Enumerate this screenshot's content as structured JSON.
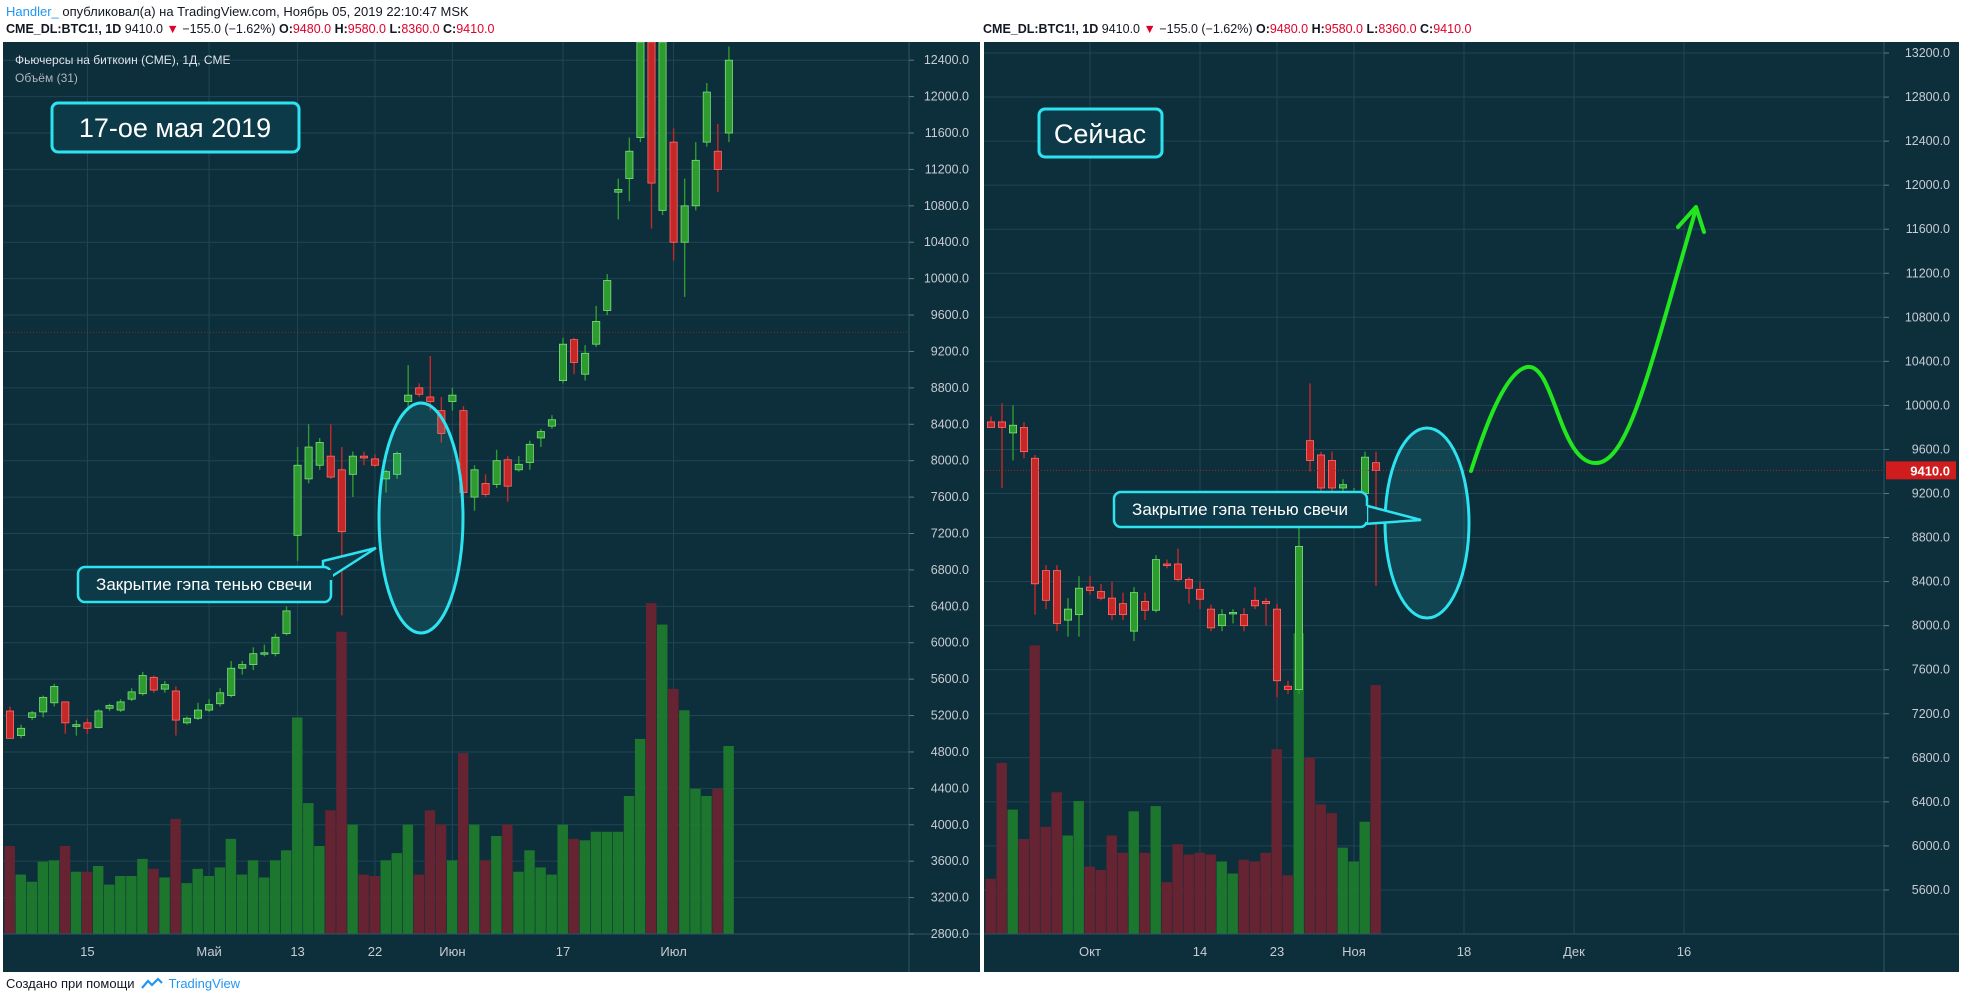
{
  "header": {
    "author": "Handler_",
    "published": "опубликовал(а) на TradingView.com, Ноябрь 05, 2019 22:10:47 MSK"
  },
  "footer": {
    "made_with": "Создано при помощи",
    "brand": "TradingView"
  },
  "colors": {
    "background": "#0d2e3b",
    "up": "#2e9b2e",
    "down": "#c62828",
    "annotation": "#2de3ef",
    "arrow": "#22e61e",
    "grid": "#1f4654"
  },
  "chart_data": [
    {
      "type": "candlestick",
      "ticker": {
        "symbol": "CME_DL:BTC1!, 1D",
        "last": "9410.0",
        "change": "−155.0 (−1.62%)",
        "o_label": "O:",
        "o": "9480.0",
        "h_label": "H:",
        "h": "9580.0",
        "l_label": "L:",
        "l": "8360.0",
        "c_label": "C:",
        "c": "9410.0"
      },
      "legend_title": "Фьючерсы на биткоин (CME), 1Д, CME",
      "legend_volume": "Объём (31)",
      "label_box": "17-ое мая 2019",
      "callout": "Закрытие гэпа тенью свечи",
      "ylim": [
        2800,
        12600
      ],
      "y_ticks": [
        2800,
        3200,
        3600,
        4000,
        4400,
        4800,
        5200,
        5600,
        6000,
        6400,
        6800,
        7200,
        7600,
        8000,
        8400,
        8800,
        9200,
        9600,
        10000,
        10400,
        10800,
        11200,
        11600,
        12000,
        12400
      ],
      "x_ticks": [
        {
          "i": 7,
          "label": "15"
        },
        {
          "i": 18,
          "label": "Май"
        },
        {
          "i": 26,
          "label": "13"
        },
        {
          "i": 33,
          "label": "22"
        },
        {
          "i": 40,
          "label": "Июн"
        },
        {
          "i": 50,
          "label": "17"
        },
        {
          "i": 60,
          "label": "Июл"
        }
      ],
      "candles": [
        {
          "o": 5250,
          "h": 5300,
          "l": 4950,
          "c": 4950
        },
        {
          "o": 4980,
          "h": 5100,
          "l": 4950,
          "c": 5060
        },
        {
          "o": 5180,
          "h": 5250,
          "l": 5150,
          "c": 5230
        },
        {
          "o": 5240,
          "h": 5420,
          "l": 5180,
          "c": 5400
        },
        {
          "o": 5340,
          "h": 5550,
          "l": 5300,
          "c": 5520
        },
        {
          "o": 5350,
          "h": 5350,
          "l": 5000,
          "c": 5120
        },
        {
          "o": 5080,
          "h": 5150,
          "l": 4980,
          "c": 5100
        },
        {
          "o": 5120,
          "h": 5170,
          "l": 5000,
          "c": 5060
        },
        {
          "o": 5070,
          "h": 5270,
          "l": 5060,
          "c": 5250
        },
        {
          "o": 5280,
          "h": 5330,
          "l": 5250,
          "c": 5310
        },
        {
          "o": 5260,
          "h": 5380,
          "l": 5240,
          "c": 5350
        },
        {
          "o": 5380,
          "h": 5500,
          "l": 5360,
          "c": 5460
        },
        {
          "o": 5440,
          "h": 5680,
          "l": 5420,
          "c": 5640
        },
        {
          "o": 5620,
          "h": 5640,
          "l": 5450,
          "c": 5480
        },
        {
          "o": 5490,
          "h": 5580,
          "l": 5450,
          "c": 5540
        },
        {
          "o": 5470,
          "h": 5520,
          "l": 4980,
          "c": 5150
        },
        {
          "o": 5120,
          "h": 5190,
          "l": 5100,
          "c": 5170
        },
        {
          "o": 5170,
          "h": 5340,
          "l": 5150,
          "c": 5260
        },
        {
          "o": 5260,
          "h": 5380,
          "l": 5240,
          "c": 5320
        },
        {
          "o": 5330,
          "h": 5500,
          "l": 5300,
          "c": 5450
        },
        {
          "o": 5420,
          "h": 5800,
          "l": 5400,
          "c": 5720
        },
        {
          "o": 5720,
          "h": 5800,
          "l": 5650,
          "c": 5760
        },
        {
          "o": 5760,
          "h": 5950,
          "l": 5700,
          "c": 5880
        },
        {
          "o": 5880,
          "h": 5980,
          "l": 5850,
          "c": 5890
        },
        {
          "o": 5880,
          "h": 6100,
          "l": 5850,
          "c": 6060
        },
        {
          "o": 6100,
          "h": 6400,
          "l": 6080,
          "c": 6350
        },
        {
          "o": 7180,
          "h": 8150,
          "l": 6900,
          "c": 7950
        },
        {
          "o": 7800,
          "h": 8400,
          "l": 7750,
          "c": 8150
        },
        {
          "o": 7950,
          "h": 8250,
          "l": 7900,
          "c": 8200
        },
        {
          "o": 8050,
          "h": 8400,
          "l": 7800,
          "c": 7820
        },
        {
          "o": 7900,
          "h": 8150,
          "l": 6300,
          "c": 7220
        },
        {
          "o": 7850,
          "h": 8100,
          "l": 7600,
          "c": 8050
        },
        {
          "o": 8050,
          "h": 8100,
          "l": 7950,
          "c": 8030
        },
        {
          "o": 8020,
          "h": 8070,
          "l": 7930,
          "c": 7950
        },
        {
          "o": 7800,
          "h": 7900,
          "l": 7650,
          "c": 7880
        },
        {
          "o": 7850,
          "h": 8100,
          "l": 7800,
          "c": 8080
        },
        {
          "o": 8650,
          "h": 9050,
          "l": 8550,
          "c": 8720
        },
        {
          "o": 8800,
          "h": 8850,
          "l": 8700,
          "c": 8730
        },
        {
          "o": 8700,
          "h": 9150,
          "l": 8550,
          "c": 8650
        },
        {
          "o": 8550,
          "h": 8700,
          "l": 8200,
          "c": 8300
        },
        {
          "o": 8650,
          "h": 8800,
          "l": 8550,
          "c": 8720
        },
        {
          "o": 8550,
          "h": 8600,
          "l": 7600,
          "c": 7650
        },
        {
          "o": 7600,
          "h": 7950,
          "l": 7450,
          "c": 7900
        },
        {
          "o": 7750,
          "h": 7850,
          "l": 7600,
          "c": 7630
        },
        {
          "o": 7740,
          "h": 8120,
          "l": 7700,
          "c": 8000
        },
        {
          "o": 8010,
          "h": 8050,
          "l": 7550,
          "c": 7720
        },
        {
          "o": 7900,
          "h": 8050,
          "l": 7880,
          "c": 7960
        },
        {
          "o": 7980,
          "h": 8220,
          "l": 7900,
          "c": 8180
        },
        {
          "o": 8250,
          "h": 8350,
          "l": 8150,
          "c": 8320
        },
        {
          "o": 8380,
          "h": 8500,
          "l": 8350,
          "c": 8450
        },
        {
          "o": 8880,
          "h": 9350,
          "l": 8850,
          "c": 9280
        },
        {
          "o": 9330,
          "h": 9350,
          "l": 8950,
          "c": 9080
        },
        {
          "o": 8950,
          "h": 9270,
          "l": 8880,
          "c": 9180
        },
        {
          "o": 9280,
          "h": 9700,
          "l": 9250,
          "c": 9530
        },
        {
          "o": 9650,
          "h": 10050,
          "l": 9600,
          "c": 9980
        },
        {
          "o": 10950,
          "h": 11100,
          "l": 10650,
          "c": 10980
        },
        {
          "o": 11100,
          "h": 11550,
          "l": 10850,
          "c": 11400
        },
        {
          "o": 11550,
          "h": 12600,
          "l": 11500,
          "c": 12600
        },
        {
          "o": 12600,
          "h": 12600,
          "l": 10550,
          "c": 11050
        },
        {
          "o": 10750,
          "h": 12600,
          "l": 10700,
          "c": 12600
        },
        {
          "o": 11500,
          "h": 11650,
          "l": 10200,
          "c": 10400
        },
        {
          "o": 10400,
          "h": 11100,
          "l": 9800,
          "c": 10800
        },
        {
          "o": 10800,
          "h": 11500,
          "l": 10750,
          "c": 11300
        },
        {
          "o": 11500,
          "h": 12150,
          "l": 11450,
          "c": 12050
        },
        {
          "o": 11400,
          "h": 11700,
          "l": 10950,
          "c": 11200
        },
        {
          "o": 11600,
          "h": 12550,
          "l": 11500,
          "c": 12400
        }
      ]
    },
    {
      "type": "candlestick",
      "ticker": {
        "symbol": "CME_DL:BTC1!, 1D",
        "last": "9410.0",
        "change": "−155.0 (−1.62%)",
        "o_label": "O:",
        "o": "9480.0",
        "h_label": "H:",
        "h": "9580.0",
        "l_label": "L:",
        "l": "8360.0",
        "c_label": "C:",
        "c": "9410.0"
      },
      "label_box": "Сейчас",
      "callout": "Закрытие гэпа тенью свечи",
      "price_tag": "9410.0",
      "ylim": [
        5200,
        13300
      ],
      "y_ticks": [
        5600,
        6000,
        6400,
        6800,
        7200,
        7600,
        8000,
        8400,
        8800,
        9200,
        9600,
        10000,
        10400,
        10800,
        11200,
        11600,
        12000,
        12400,
        12800,
        13200
      ],
      "x_ticks": [
        {
          "i": 9,
          "label": "Окт"
        },
        {
          "i": 19,
          "label": "14"
        },
        {
          "i": 26,
          "label": "23"
        },
        {
          "i": 33,
          "label": "Ноя"
        },
        {
          "i": 43,
          "label": "18"
        },
        {
          "i": 53,
          "label": "Дек"
        },
        {
          "i": 63,
          "label": "16"
        }
      ],
      "candles": [
        {
          "o": 9850,
          "h": 9900,
          "l": 9800,
          "c": 9800
        },
        {
          "o": 9850,
          "h": 10020,
          "l": 9250,
          "c": 9800
        },
        {
          "o": 9750,
          "h": 10000,
          "l": 9500,
          "c": 9820
        },
        {
          "o": 9800,
          "h": 9850,
          "l": 9520,
          "c": 9580
        },
        {
          "o": 9520,
          "h": 9550,
          "l": 8100,
          "c": 8380
        },
        {
          "o": 8500,
          "h": 8550,
          "l": 8150,
          "c": 8230
        },
        {
          "o": 8500,
          "h": 8550,
          "l": 7950,
          "c": 8020
        },
        {
          "o": 8050,
          "h": 8250,
          "l": 7900,
          "c": 8150
        },
        {
          "o": 8100,
          "h": 8450,
          "l": 7900,
          "c": 8340
        },
        {
          "o": 8350,
          "h": 8450,
          "l": 8280,
          "c": 8320
        },
        {
          "o": 8310,
          "h": 8380,
          "l": 8230,
          "c": 8250
        },
        {
          "o": 8250,
          "h": 8400,
          "l": 8050,
          "c": 8100
        },
        {
          "o": 8200,
          "h": 8300,
          "l": 8050,
          "c": 8100
        },
        {
          "o": 7950,
          "h": 8350,
          "l": 7860,
          "c": 8300
        },
        {
          "o": 8220,
          "h": 8300,
          "l": 8050,
          "c": 8140
        },
        {
          "o": 8140,
          "h": 8640,
          "l": 8120,
          "c": 8600
        },
        {
          "o": 8560,
          "h": 8600,
          "l": 8520,
          "c": 8550
        },
        {
          "o": 8560,
          "h": 8700,
          "l": 8400,
          "c": 8420
        },
        {
          "o": 8420,
          "h": 8440,
          "l": 8200,
          "c": 8340
        },
        {
          "o": 8330,
          "h": 8400,
          "l": 8150,
          "c": 8240
        },
        {
          "o": 8150,
          "h": 8190,
          "l": 7950,
          "c": 7980
        },
        {
          "o": 8000,
          "h": 8150,
          "l": 7950,
          "c": 8100
        },
        {
          "o": 8110,
          "h": 8150,
          "l": 8020,
          "c": 8120
        },
        {
          "o": 8100,
          "h": 8160,
          "l": 7950,
          "c": 8000
        },
        {
          "o": 8230,
          "h": 8350,
          "l": 8150,
          "c": 8180
        },
        {
          "o": 8220,
          "h": 8250,
          "l": 8000,
          "c": 8200
        },
        {
          "o": 8150,
          "h": 8200,
          "l": 7350,
          "c": 7500
        },
        {
          "o": 7450,
          "h": 7500,
          "l": 7380,
          "c": 7420
        },
        {
          "o": 7420,
          "h": 8900,
          "l": 7380,
          "c": 8720
        },
        {
          "o": 9680,
          "h": 10200,
          "l": 9400,
          "c": 9500
        },
        {
          "o": 9550,
          "h": 9580,
          "l": 9050,
          "c": 9250
        },
        {
          "o": 9500,
          "h": 9580,
          "l": 9100,
          "c": 9250
        },
        {
          "o": 9250,
          "h": 9330,
          "l": 9050,
          "c": 9280
        },
        {
          "o": 9200,
          "h": 9250,
          "l": 9050,
          "c": 9210
        },
        {
          "o": 9200,
          "h": 9580,
          "l": 9150,
          "c": 9530
        },
        {
          "o": 9480,
          "h": 9580,
          "l": 8360,
          "c": 9410
        }
      ]
    }
  ]
}
